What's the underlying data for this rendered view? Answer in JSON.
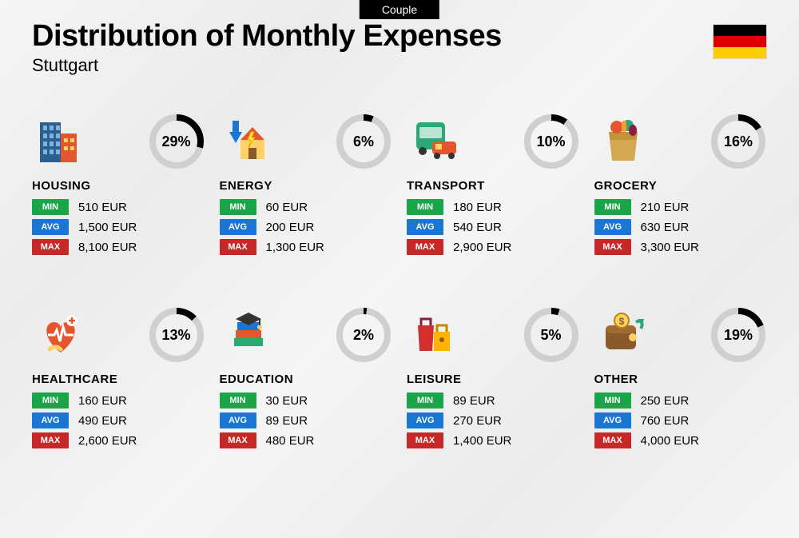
{
  "tag": "Couple",
  "title": "Distribution of Monthly Expenses",
  "subtitle": "Stuttgart",
  "flag_colors": [
    "#000000",
    "#dd0000",
    "#ffce00"
  ],
  "ring": {
    "track_color": "#cfcfcf",
    "progress_color": "#000000",
    "stroke_width": 8,
    "radius": 30
  },
  "badges": {
    "min": {
      "label": "MIN",
      "color": "#1aa548"
    },
    "avg": {
      "label": "AVG",
      "color": "#1976d2"
    },
    "max": {
      "label": "MAX",
      "color": "#c62828"
    }
  },
  "currency": "EUR",
  "categories": [
    {
      "key": "housing",
      "name": "HOUSING",
      "percent": 29,
      "min": "510",
      "avg": "1,500",
      "max": "8,100",
      "icon": "buildings"
    },
    {
      "key": "energy",
      "name": "ENERGY",
      "percent": 6,
      "min": "60",
      "avg": "200",
      "max": "1,300",
      "icon": "energy"
    },
    {
      "key": "transport",
      "name": "TRANSPORT",
      "percent": 10,
      "min": "180",
      "avg": "540",
      "max": "2,900",
      "icon": "transport"
    },
    {
      "key": "grocery",
      "name": "GROCERY",
      "percent": 16,
      "min": "210",
      "avg": "630",
      "max": "3,300",
      "icon": "grocery"
    },
    {
      "key": "healthcare",
      "name": "HEALTHCARE",
      "percent": 13,
      "min": "160",
      "avg": "490",
      "max": "2,600",
      "icon": "healthcare"
    },
    {
      "key": "education",
      "name": "EDUCATION",
      "percent": 2,
      "min": "30",
      "avg": "89",
      "max": "480",
      "icon": "education"
    },
    {
      "key": "leisure",
      "name": "LEISURE",
      "percent": 5,
      "min": "89",
      "avg": "270",
      "max": "1,400",
      "icon": "leisure"
    },
    {
      "key": "other",
      "name": "OTHER",
      "percent": 19,
      "min": "250",
      "avg": "760",
      "max": "4,000",
      "icon": "other"
    }
  ]
}
